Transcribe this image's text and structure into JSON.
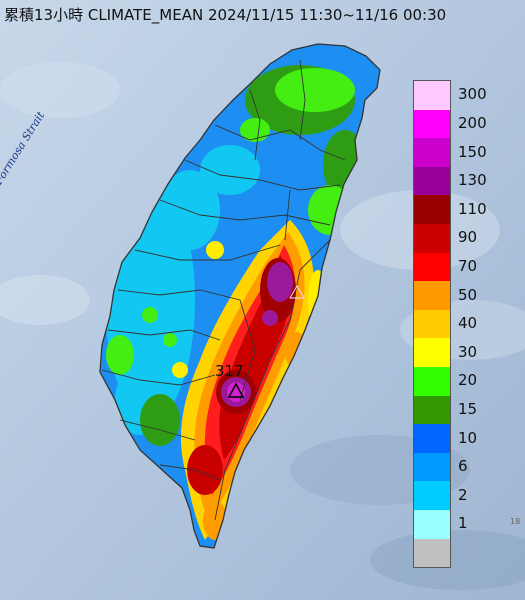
{
  "map": {
    "title": "累積13小時 CLIMATE_MEAN 2024/11/15 11:30~11/16 00:30",
    "strait_label": "Formosa Strait",
    "max_station": {
      "label": "317",
      "marker": "triangle-marker"
    },
    "edge_text": "18",
    "colors": {
      "sea": "#b9cbe0",
      "sea_dark": "#8fa9c9",
      "border": "#333333"
    }
  },
  "legend": {
    "title": "",
    "items": [
      {
        "label": "300",
        "color": "#ffc8ff"
      },
      {
        "label": "200",
        "color": "#ff00ff"
      },
      {
        "label": "150",
        "color": "#cc00cc"
      },
      {
        "label": "130",
        "color": "#990099"
      },
      {
        "label": "110",
        "color": "#990000"
      },
      {
        "label": "90",
        "color": "#cc0000"
      },
      {
        "label": "70",
        "color": "#ff0000"
      },
      {
        "label": "50",
        "color": "#ff9900"
      },
      {
        "label": "40",
        "color": "#ffcc00"
      },
      {
        "label": "30",
        "color": "#ffff00"
      },
      {
        "label": "20",
        "color": "#33ff00"
      },
      {
        "label": "15",
        "color": "#339900"
      },
      {
        "label": "10",
        "color": "#0066ff"
      },
      {
        "label": "6",
        "color": "#0099ff"
      },
      {
        "label": "2",
        "color": "#00ccff"
      },
      {
        "label": "1",
        "color": "#99ffff"
      },
      {
        "label": "",
        "color": "#c0c0c0"
      }
    ]
  }
}
